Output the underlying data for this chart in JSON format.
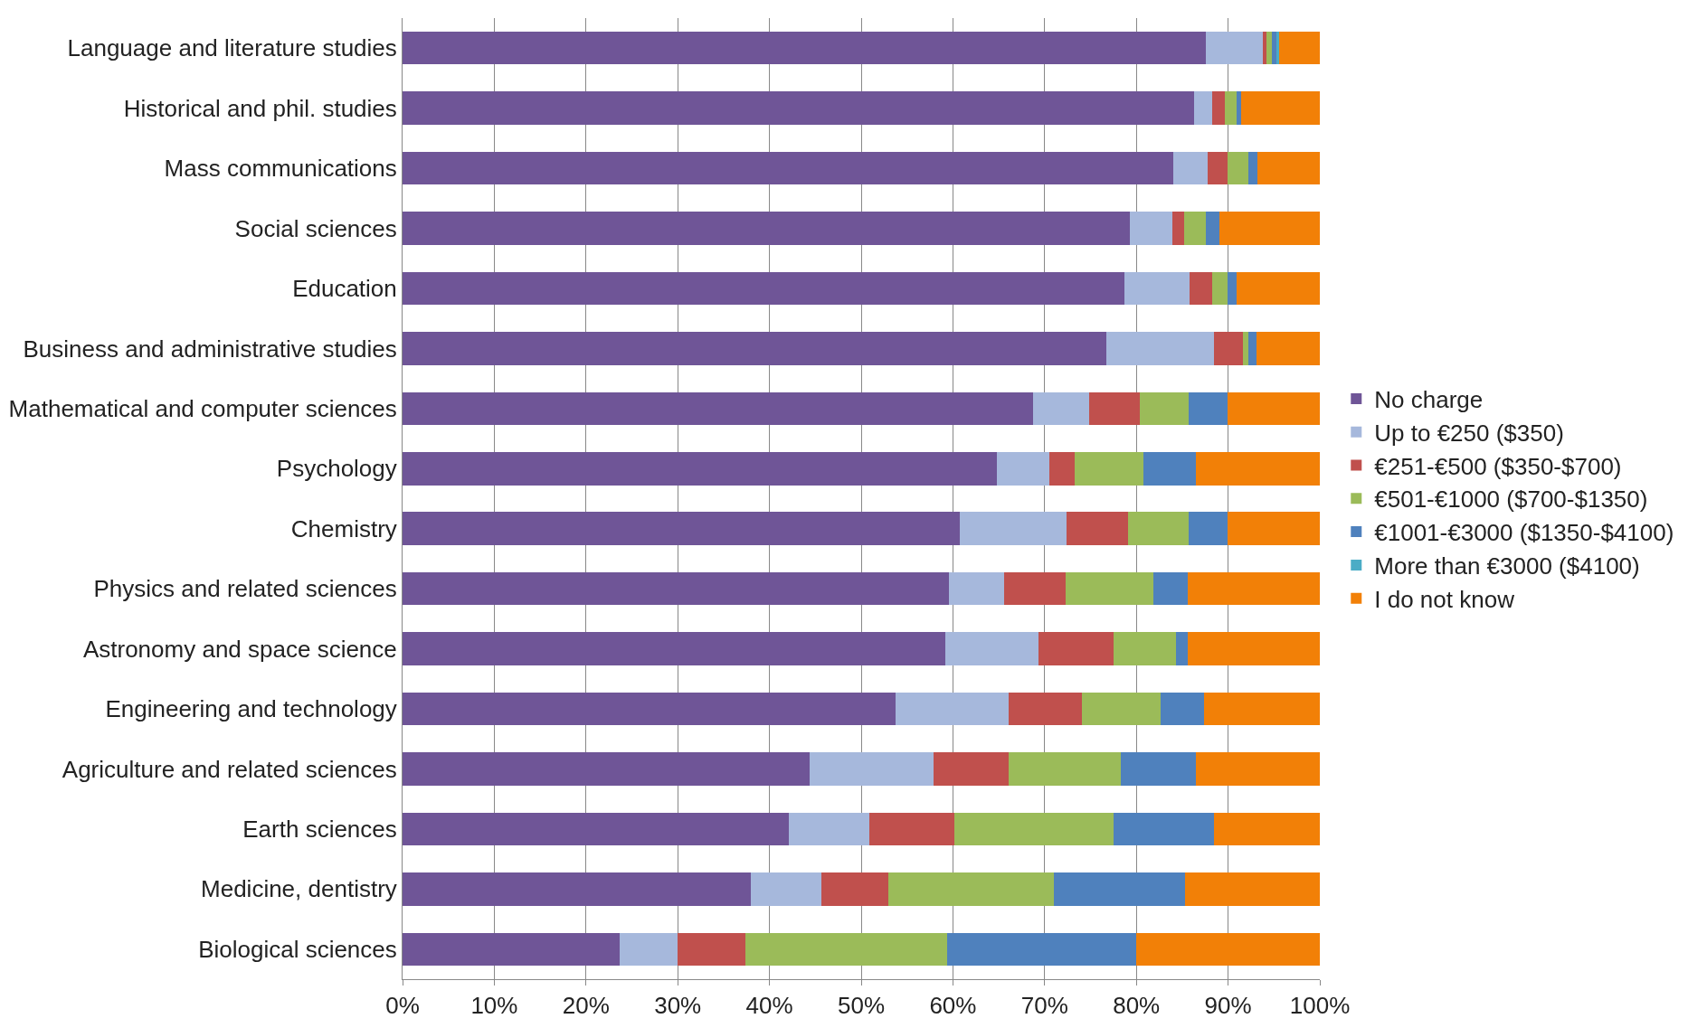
{
  "chart_data": {
    "type": "bar",
    "orientation": "horizontal",
    "stacked": true,
    "categories": [
      "Language and literature studies",
      "Historical and phil. studies",
      "Mass communications",
      "Social sciences",
      "Education",
      "Business and administrative studies",
      "Mathematical and computer sciences",
      "Psychology",
      "Chemistry",
      "Physics and related sciences",
      "Astronomy and space science",
      "Engineering and technology",
      "Agriculture and related sciences",
      "Earth sciences",
      "Medicine, dentistry",
      "Biological sciences"
    ],
    "series": [
      {
        "name": "No charge",
        "color": "#6f5597",
        "values": [
          87.6,
          86.3,
          84.0,
          79.3,
          78.7,
          76.7,
          68.7,
          64.8,
          60.7,
          59.6,
          59.2,
          53.7,
          44.4,
          42.1,
          38.0,
          23.7
        ]
      },
      {
        "name": "Up to €250 ($350)",
        "color": "#a6b8dc",
        "values": [
          6.2,
          2.0,
          3.8,
          4.6,
          7.1,
          11.8,
          6.2,
          5.7,
          11.7,
          6.0,
          10.1,
          12.4,
          13.5,
          8.8,
          7.7,
          6.3
        ]
      },
      {
        "name": "€251-€500 ($350-$700)",
        "color": "#c0504d",
        "values": [
          0.4,
          1.3,
          2.1,
          1.3,
          2.5,
          3.1,
          5.5,
          2.8,
          6.7,
          6.7,
          8.2,
          8.0,
          8.2,
          9.3,
          7.3,
          7.4
        ]
      },
      {
        "name": "€501-€1000 ($700-$1350)",
        "color": "#9bbb59",
        "values": [
          0.6,
          1.3,
          2.3,
          2.4,
          1.6,
          0.6,
          5.3,
          7.5,
          6.6,
          9.6,
          6.8,
          8.5,
          12.2,
          17.3,
          18.0,
          22.0
        ]
      },
      {
        "name": "€1001-€3000 ($1350-$4100)",
        "color": "#4f81bd",
        "values": [
          0.5,
          0.5,
          1.0,
          1.5,
          1.0,
          0.9,
          4.2,
          5.7,
          4.2,
          3.7,
          1.3,
          4.8,
          8.2,
          11.0,
          14.3,
          20.6
        ]
      },
      {
        "name": "More than €3000 ($4100)",
        "color": "#4bacc6",
        "values": [
          0.3,
          0,
          0,
          0,
          0,
          0,
          0,
          0,
          0,
          0,
          0,
          0,
          0,
          0,
          0,
          0
        ]
      },
      {
        "name": "I do not know",
        "color": "#f28007",
        "values": [
          4.4,
          8.6,
          6.8,
          10.9,
          9.1,
          6.9,
          10.1,
          13.5,
          10.1,
          14.4,
          14.4,
          12.6,
          13.5,
          11.5,
          14.7,
          20.0
        ]
      }
    ],
    "xlim": [
      0,
      100
    ],
    "xticks": [
      {
        "value": 0,
        "label": "0%"
      },
      {
        "value": 10,
        "label": "10%"
      },
      {
        "value": 20,
        "label": "20%"
      },
      {
        "value": 30,
        "label": "30%"
      },
      {
        "value": 40,
        "label": "40%"
      },
      {
        "value": 50,
        "label": "50%"
      },
      {
        "value": 60,
        "label": "60%"
      },
      {
        "value": 70,
        "label": "70%"
      },
      {
        "value": 80,
        "label": "80%"
      },
      {
        "value": 90,
        "label": "90%"
      },
      {
        "value": 100,
        "label": "100%"
      }
    ],
    "grid": "x",
    "legend": "right"
  }
}
